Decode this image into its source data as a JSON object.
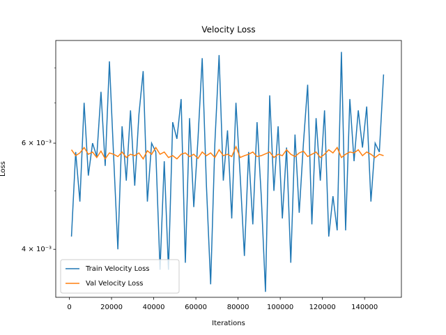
{
  "chart_data": {
    "type": "line",
    "title": "Velocity Loss",
    "xlabel": "Iterations",
    "ylabel": "Loss",
    "yscale": "log",
    "legend": "lower left",
    "xlim": [
      -6450,
      157450
    ],
    "xticks": [
      0,
      20000,
      40000,
      60000,
      80000,
      100000,
      120000,
      140000
    ],
    "ylim": [
      0.00333,
      0.00888
    ],
    "yticks": [
      {
        "value": 0.004,
        "label": "4 × 10⁻³"
      },
      {
        "value": 0.006,
        "label": "6 × 10⁻³"
      }
    ],
    "yminorticks": [
      0.005,
      0.007,
      0.008
    ],
    "x": [
      1000,
      3000,
      5000,
      7000,
      9000,
      11000,
      13000,
      15000,
      17000,
      19000,
      21000,
      23000,
      25000,
      27000,
      29000,
      31000,
      33000,
      35000,
      37000,
      39000,
      41000,
      43000,
      45000,
      47000,
      49000,
      51000,
      53000,
      55000,
      57000,
      59000,
      61000,
      63000,
      65000,
      67000,
      69000,
      71000,
      73000,
      75000,
      77000,
      79000,
      81000,
      83000,
      85000,
      87000,
      89000,
      91000,
      93000,
      95000,
      97000,
      99000,
      101000,
      103000,
      105000,
      107000,
      109000,
      111000,
      113000,
      115000,
      117000,
      119000,
      121000,
      123000,
      125000,
      127000,
      129000,
      131000,
      133000,
      135000,
      137000,
      139000,
      141000,
      143000,
      145000,
      147000,
      149000
    ],
    "series": [
      {
        "name": "Train Velocity Loss",
        "color": "#1f77b4",
        "values": [
          0.0042,
          0.0058,
          0.0048,
          0.007,
          0.0053,
          0.006,
          0.0057,
          0.0073,
          0.0055,
          0.0082,
          0.0057,
          0.004,
          0.0064,
          0.0052,
          0.0068,
          0.0051,
          0.0067,
          0.0079,
          0.0048,
          0.006,
          0.0058,
          0.0037,
          0.0056,
          0.0037,
          0.0065,
          0.0061,
          0.0071,
          0.0038,
          0.0066,
          0.0047,
          0.0061,
          0.0083,
          0.0051,
          0.0035,
          0.006,
          0.0084,
          0.0052,
          0.0063,
          0.0045,
          0.007,
          0.0053,
          0.0039,
          0.0058,
          0.0044,
          0.0065,
          0.0049,
          0.0034,
          0.0072,
          0.005,
          0.0064,
          0.0045,
          0.0059,
          0.0038,
          0.0062,
          0.0046,
          0.006,
          0.0075,
          0.0044,
          0.0066,
          0.0052,
          0.0068,
          0.0042,
          0.0049,
          0.0043,
          0.0085,
          0.0043,
          0.0071,
          0.0056,
          0.0068,
          0.0059,
          0.0069,
          0.0048,
          0.006,
          0.0058,
          0.0078
        ]
      },
      {
        "name": "Val Velocity Loss",
        "color": "#ff7f0e",
        "values": [
          0.00585,
          0.00572,
          0.00578,
          0.0059,
          0.00575,
          0.0058,
          0.00568,
          0.00582,
          0.00565,
          0.00578,
          0.00575,
          0.0057,
          0.0058,
          0.00568,
          0.00575,
          0.00572,
          0.00578,
          0.00565,
          0.00583,
          0.00575,
          0.0059,
          0.00575,
          0.0058,
          0.00568,
          0.00572,
          0.00565,
          0.00575,
          0.00578,
          0.0057,
          0.00575,
          0.00566,
          0.0058,
          0.00572,
          0.00578,
          0.00568,
          0.00585,
          0.00572,
          0.00575,
          0.0057,
          0.00592,
          0.00568,
          0.00572,
          0.00575,
          0.0058,
          0.0057,
          0.00572,
          0.00576,
          0.0058,
          0.00568,
          0.00575,
          0.00572,
          0.00585,
          0.00575,
          0.0057,
          0.00578,
          0.00582,
          0.0057,
          0.00575,
          0.0058,
          0.00568,
          0.00575,
          0.00585,
          0.00578,
          0.0059,
          0.00568,
          0.00575,
          0.0058,
          0.00578,
          0.00585,
          0.00572,
          0.0058,
          0.00575,
          0.00568,
          0.00575,
          0.00572
        ]
      }
    ]
  }
}
